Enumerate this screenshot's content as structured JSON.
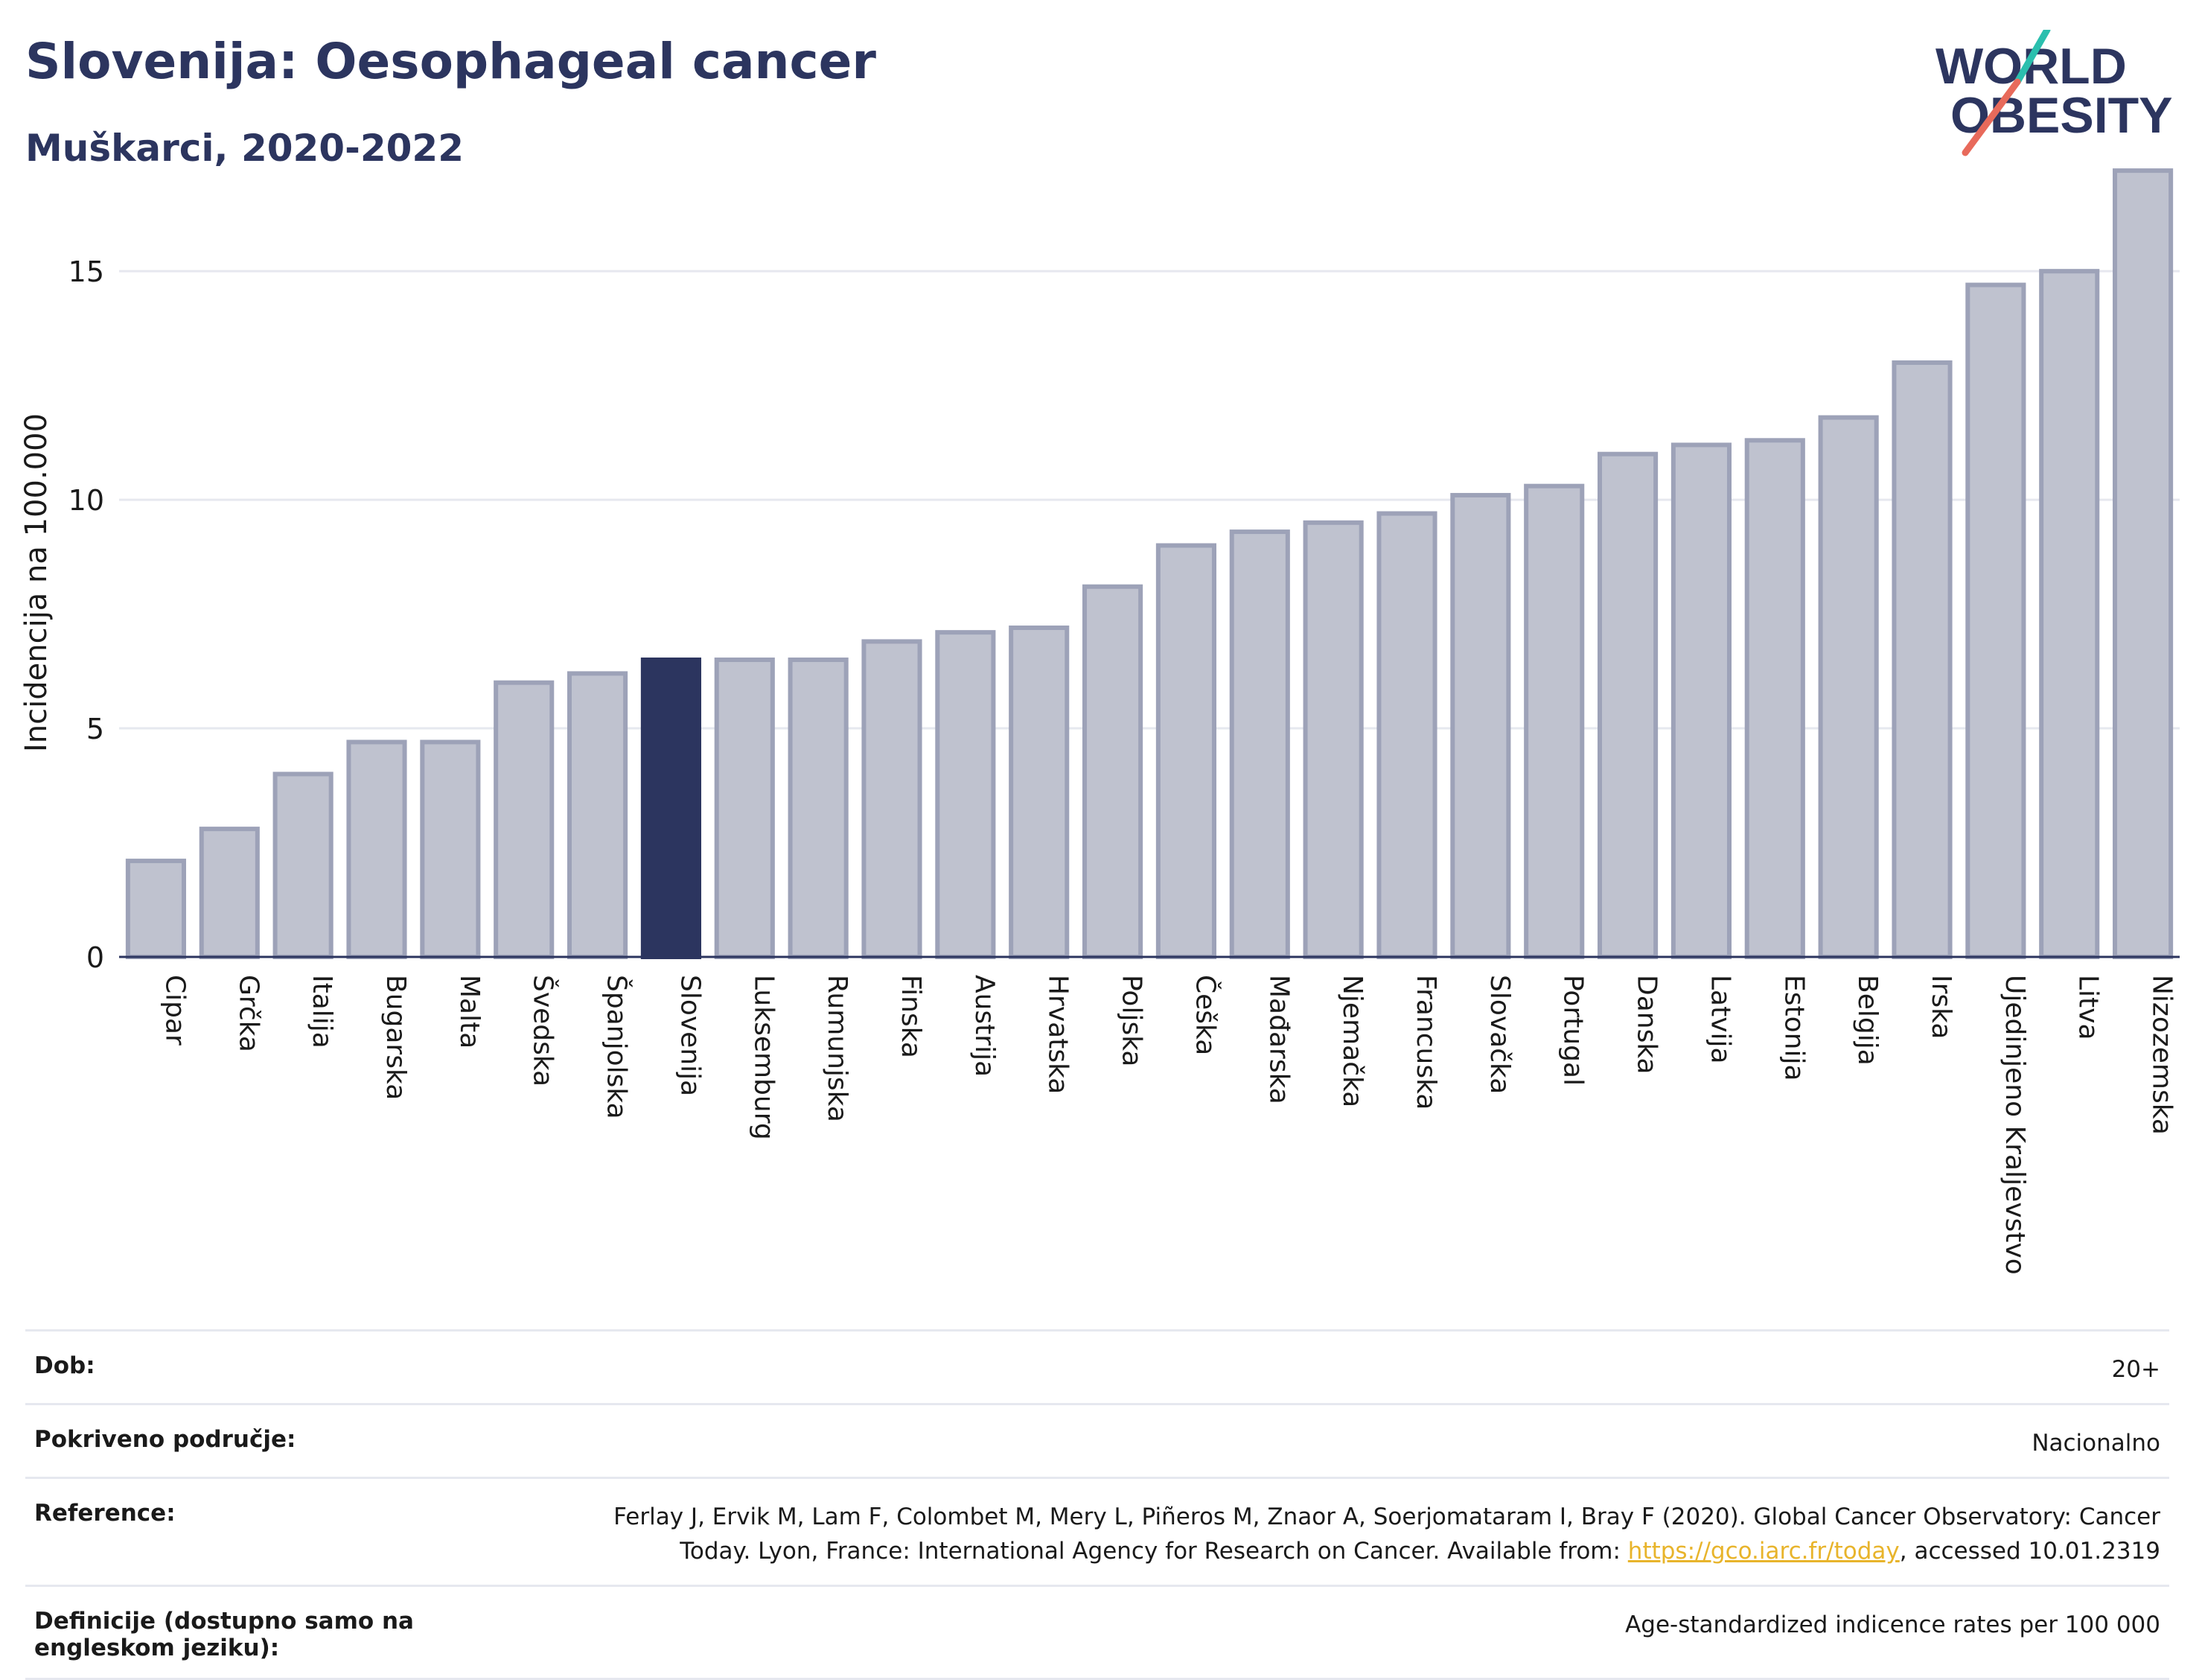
{
  "header": {
    "title": "Slovenija: Oesophageal cancer",
    "subtitle": "Muškarci, 2020-2022"
  },
  "logo": {
    "line1": "WORLD",
    "line2": "OBESITY"
  },
  "colors": {
    "bar": "#bfc2cf",
    "bar_border": "#9da2b8",
    "highlight": "#2c355f",
    "logo_slash_top": "#2bbfae",
    "logo_slash_bottom": "#e86a5b"
  },
  "chart_data": {
    "type": "bar",
    "categories": [
      "Cipar",
      "Grčka",
      "Italija",
      "Bugarska",
      "Malta",
      "Švedska",
      "Španjolska",
      "Slovenija",
      "Luksemburg",
      "Rumunjska",
      "Finska",
      "Austrija",
      "Hrvatska",
      "Poljska",
      "Češka",
      "Mađarska",
      "Njemačka",
      "Francuska",
      "Slovačka",
      "Portugal",
      "Danska",
      "Latvija",
      "Estonija",
      "Belgija",
      "Irska",
      "Ujedinjeno Kraljevstvo",
      "Litva",
      "Nizozemska"
    ],
    "values": [
      2.1,
      2.8,
      4.0,
      4.7,
      4.7,
      6.0,
      6.2,
      6.5,
      6.5,
      6.5,
      6.9,
      7.1,
      7.2,
      8.1,
      9.0,
      9.3,
      9.5,
      9.7,
      10.1,
      10.3,
      11.0,
      11.2,
      11.3,
      11.8,
      13.0,
      14.7,
      15.0,
      17.2
    ],
    "highlight": "Slovenija",
    "ylabel": "Incidencija na 100.000",
    "ylim": [
      0,
      18
    ],
    "yticks": [
      0,
      5,
      10,
      15
    ],
    "grid": true
  },
  "info": {
    "rows": [
      {
        "key": "Dob:",
        "value": "20+"
      },
      {
        "key": "Pokriveno područje:",
        "value": "Nacionalno"
      },
      {
        "key": "Reference:",
        "value_before": "Ferlay J, Ervik M, Lam F, Colombet M, Mery L, Piñeros M, Znaor A, Soerjomataram I, Bray F (2020). Global Cancer Observatory: Cancer Today. Lyon, France: International Agency for Research on Cancer. Available from: ",
        "link": "https://gco.iarc.fr/today",
        "value_after": ", accessed 10.01.2319"
      },
      {
        "key": "Definicije (dostupno samo na engleskom jeziku):",
        "value": "Age-standardized indicence rates per 100 000"
      }
    ]
  }
}
